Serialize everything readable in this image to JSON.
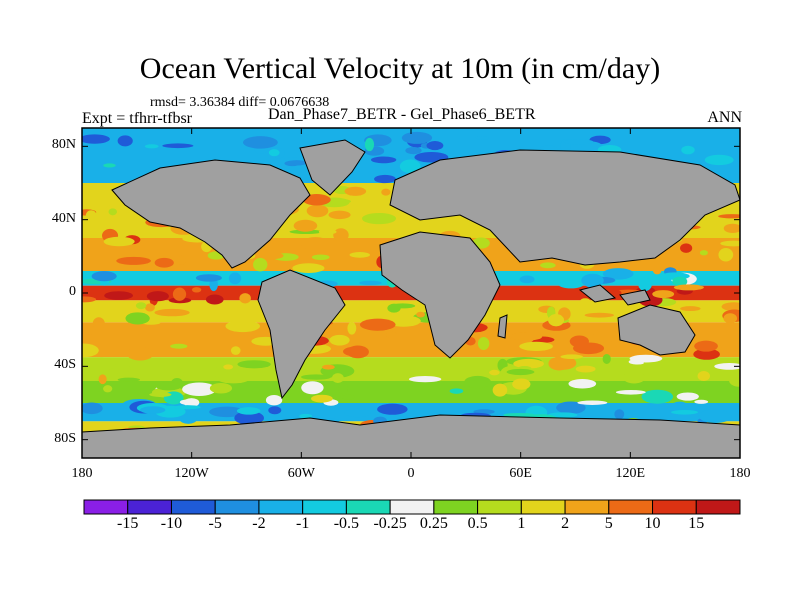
{
  "title": "Ocean Vertical Velocity at 10m (in cm/day)",
  "stats": "rmsd= 3.36384 diff= 0.0676638",
  "expt": "Expt = tfhrr-tfbsr",
  "diff_name": "Dan_Phase7_BETR - Gel_Phase6_BETR",
  "season": "ANN",
  "chart_data": {
    "type": "heatmap",
    "title": "Ocean Vertical Velocity at 10m (in cm/day)",
    "xlabel": "",
    "ylabel": "",
    "xlim": [
      -180,
      180
    ],
    "ylim": [
      -90,
      90
    ],
    "x_ticks": [
      {
        "value": -180,
        "label": "180"
      },
      {
        "value": -120,
        "label": "120W"
      },
      {
        "value": -60,
        "label": "60W"
      },
      {
        "value": 0,
        "label": "0"
      },
      {
        "value": 60,
        "label": "60E"
      },
      {
        "value": 120,
        "label": "120E"
      },
      {
        "value": 180,
        "label": "180"
      }
    ],
    "y_ticks": [
      {
        "value": 80,
        "label": "80N"
      },
      {
        "value": 40,
        "label": "40N"
      },
      {
        "value": 0,
        "label": "0"
      },
      {
        "value": -40,
        "label": "40S"
      },
      {
        "value": -80,
        "label": "80S"
      }
    ],
    "colorbar": {
      "levels": [
        "-15",
        "-10",
        "-5",
        "-2",
        "-1",
        "-0.5",
        "-0.25",
        "0.25",
        "0.5",
        "1",
        "2",
        "5",
        "10",
        "15"
      ],
      "colors": [
        "#8a1fe6",
        "#4b22d6",
        "#1f5bd8",
        "#1f8fe0",
        "#19b0e8",
        "#13cbe0",
        "#1ad8b5",
        "#f2f2f2",
        "#7ed321",
        "#b5dc1e",
        "#e2d41c",
        "#f0a31a",
        "#ec6a16",
        "#dc3212",
        "#c01818"
      ]
    },
    "bands": [
      {
        "lat": [
          60,
          90
        ],
        "value": -2
      },
      {
        "lat": [
          30,
          60
        ],
        "value": 1
      },
      {
        "lat": [
          12,
          30
        ],
        "value": 2
      },
      {
        "lat": [
          4,
          12
        ],
        "value": -1
      },
      {
        "lat": [
          -4,
          4
        ],
        "value": 10
      },
      {
        "lat": [
          -16,
          -4
        ],
        "value": 1
      },
      {
        "lat": [
          -35,
          -16
        ],
        "value": 2
      },
      {
        "lat": [
          -48,
          -35
        ],
        "value": 0.5
      },
      {
        "lat": [
          -60,
          -48
        ],
        "value": 0.25
      },
      {
        "lat": [
          -70,
          -60
        ],
        "value": -2
      },
      {
        "lat": [
          -90,
          -70
        ],
        "value": 1
      }
    ],
    "land_color": "#a0a0a0"
  }
}
